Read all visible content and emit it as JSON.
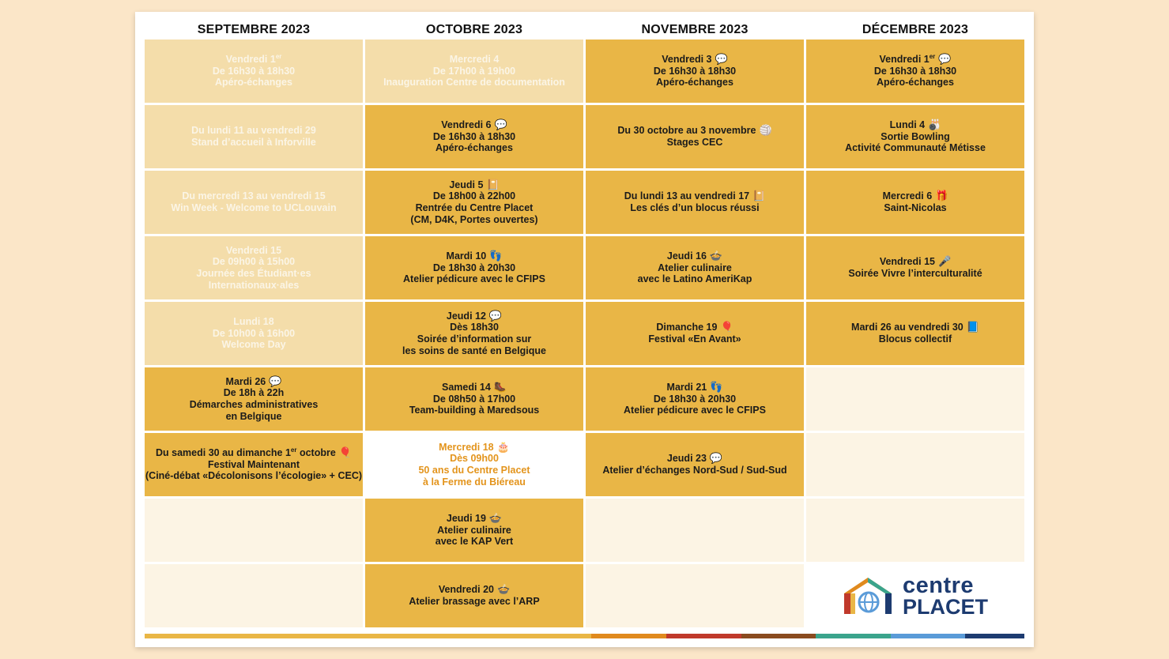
{
  "months": [
    "SEPTEMBRE 2023",
    "OCTOBRE 2023",
    "NOVEMBRE 2023",
    "DÉCEMBRE 2023"
  ],
  "colors": {
    "page_bg": "#fbe6c8",
    "active": "#e9b646",
    "past": "#f4ddaa",
    "empty": "#fcf4e4",
    "highlight_text": "#e3941c",
    "brand_navy": "#1d3b70"
  },
  "columns": [
    {
      "cells": [
        {
          "state": "past",
          "lines": [
            {
              "t": "Vendredi 1",
              "sup": "er"
            },
            {
              "t": "De 16h30 à 18h30"
            },
            {
              "t": "Apéro-échanges"
            }
          ]
        },
        {
          "state": "past",
          "lines": [
            {
              "t": "Du lundi 11 au vendredi 29"
            },
            {
              "t": "Stand d’accueil à Inforville"
            }
          ]
        },
        {
          "state": "past",
          "lines": [
            {
              "t": "Du mercredi 13 au vendredi 15"
            },
            {
              "t": "Win Week - Welcome to UCLouvain"
            }
          ]
        },
        {
          "state": "past",
          "lines": [
            {
              "t": "Vendredi 15"
            },
            {
              "t": "De 09h00 à 15h00"
            },
            {
              "t": "Journée des Étudiant·es"
            },
            {
              "t": "Internationaux·ales"
            }
          ]
        },
        {
          "state": "past",
          "lines": [
            {
              "t": "Lundi 18"
            },
            {
              "t": "De 10h00 à 16h00"
            },
            {
              "t": "Welcome Day"
            }
          ]
        },
        {
          "state": "active",
          "lines": [
            {
              "t": "Mardi 26",
              "icon": "speech-bubble-icon"
            },
            {
              "t": "De 18h à 22h"
            },
            {
              "t": "Démarches administratives"
            },
            {
              "t": "en Belgique"
            }
          ]
        },
        {
          "state": "active",
          "lines": [
            {
              "t": "Du samedi 30 au dimanche 1",
              "sup": "er",
              "t2": " octobre",
              "icon": "balloon-icon"
            },
            {
              "t": "Festival Maintenant"
            },
            {
              "t": "(Ciné-débat «Décolonisons l’écologie» + CEC)"
            }
          ]
        },
        {
          "state": "empty",
          "lines": []
        },
        {
          "state": "empty",
          "lines": []
        }
      ]
    },
    {
      "cells": [
        {
          "state": "past",
          "lines": [
            {
              "t": "Mercredi 4"
            },
            {
              "t": "De 17h00 à 19h00"
            },
            {
              "t": "Inauguration Centre de documentation"
            }
          ]
        },
        {
          "state": "active",
          "lines": [
            {
              "t": "Vendredi 6",
              "icon": "speech-bubble-icon"
            },
            {
              "t": "De 16h30 à 18h30"
            },
            {
              "t": "Apéro-échanges"
            }
          ]
        },
        {
          "state": "active",
          "lines": [
            {
              "t": "Jeudi 5",
              "icon": "notebook-icon"
            },
            {
              "t": "De 18h00 à 22h00"
            },
            {
              "t": "Rentrée du Centre Placet"
            },
            {
              "t": "(CM, D4K, Portes ouvertes)"
            }
          ]
        },
        {
          "state": "active",
          "lines": [
            {
              "t": "Mardi 10",
              "icon": "footprints-icon"
            },
            {
              "t": "De 18h30 à 20h30"
            },
            {
              "t": "Atelier pédicure avec le CFIPS"
            }
          ]
        },
        {
          "state": "active",
          "lines": [
            {
              "t": "Jeudi 12",
              "icon": "speech-bubble-icon"
            },
            {
              "t": "Dès 18h30"
            },
            {
              "t": "Soirée d’information sur"
            },
            {
              "t": "les soins de santé en Belgique"
            }
          ]
        },
        {
          "state": "active",
          "lines": [
            {
              "t": "Samedi 14",
              "icon": "hiking-boot-icon"
            },
            {
              "t": "De 08h50 à 17h00"
            },
            {
              "t": "Team-building à Maredsous"
            }
          ]
        },
        {
          "state": "highlight",
          "lines": [
            {
              "t": "Mercredi 18",
              "icon": "birthday-cake-icon"
            },
            {
              "t": "Dès 09h00"
            },
            {
              "t": "50 ans du Centre Placet"
            },
            {
              "t": "à la Ferme du Biéreau"
            }
          ]
        },
        {
          "state": "active",
          "lines": [
            {
              "t": "Jeudi 19",
              "icon": "bowl-icon"
            },
            {
              "t": "Atelier culinaire"
            },
            {
              "t": "avec le KAP Vert"
            }
          ]
        },
        {
          "state": "active",
          "lines": [
            {
              "t": "Vendredi 20",
              "icon": "bowl-icon"
            },
            {
              "t": "Atelier brassage avec l’ARP"
            }
          ]
        }
      ]
    },
    {
      "cells": [
        {
          "state": "active",
          "lines": [
            {
              "t": "Vendredi 3",
              "icon": "speech-bubble-icon"
            },
            {
              "t": "De 16h30 à 18h30"
            },
            {
              "t": "Apéro-échanges"
            }
          ]
        },
        {
          "state": "active",
          "lines": [
            {
              "t": "Du 30 octobre au 3 novembre",
              "icon": "volleyball-icon"
            },
            {
              "t": "Stages CEC"
            }
          ]
        },
        {
          "state": "active",
          "lines": [
            {
              "t": "Du lundi 13 au vendredi 17",
              "icon": "notebook-icon"
            },
            {
              "t": "Les clés d’un blocus réussi"
            }
          ]
        },
        {
          "state": "active",
          "lines": [
            {
              "t": "Jeudi 16",
              "icon": "bowl-icon"
            },
            {
              "t": "Atelier culinaire"
            },
            {
              "t": "avec le Latino AmeriKap"
            }
          ]
        },
        {
          "state": "active",
          "lines": [
            {
              "t": "Dimanche 19",
              "icon": "balloon-icon"
            },
            {
              "t": "Festival «En Avant»"
            }
          ]
        },
        {
          "state": "active",
          "lines": [
            {
              "t": "Mardi 21",
              "icon": "footprints-icon"
            },
            {
              "t": "De 18h30 à 20h30"
            },
            {
              "t": "Atelier pédicure avec le CFIPS"
            }
          ]
        },
        {
          "state": "active",
          "lines": [
            {
              "t": "Jeudi 23",
              "icon": "speech-bubble-icon"
            },
            {
              "t": "Atelier d’échanges Nord-Sud / Sud-Sud"
            }
          ]
        },
        {
          "state": "empty",
          "lines": []
        },
        {
          "state": "empty",
          "lines": []
        }
      ]
    },
    {
      "cells": [
        {
          "state": "active",
          "lines": [
            {
              "t": "Vendredi 1",
              "sup": "er",
              "icon": "speech-bubble-icon"
            },
            {
              "t": "De 16h30 à 18h30"
            },
            {
              "t": "Apéro-échanges"
            }
          ]
        },
        {
          "state": "active",
          "lines": [
            {
              "t": "Lundi 4",
              "icon": "bowling-icon"
            },
            {
              "t": "Sortie Bowling"
            },
            {
              "t": "Activité Communauté Métisse"
            }
          ]
        },
        {
          "state": "active",
          "lines": [
            {
              "t": "Mercredi 6",
              "icon": "gift-icon"
            },
            {
              "t": "Saint-Nicolas"
            }
          ]
        },
        {
          "state": "active",
          "lines": [
            {
              "t": "Vendredi 15",
              "icon": "microphone-icon"
            },
            {
              "t": "Soirée Vivre l’interculturalité"
            }
          ]
        },
        {
          "state": "active",
          "lines": [
            {
              "t": "Mardi 26 au vendredi 30",
              "icon": "book-icon"
            },
            {
              "t": "Blocus collectif"
            }
          ]
        },
        {
          "state": "empty",
          "lines": []
        },
        {
          "state": "empty",
          "lines": []
        },
        {
          "state": "empty",
          "lines": []
        },
        {
          "state": "logo",
          "lines": []
        }
      ]
    }
  ],
  "logo": {
    "word1": "centre",
    "word2": "PLACET"
  },
  "bottom_bars": [
    {
      "color": "#e9b646",
      "frac": 0.508
    },
    {
      "color": "#e08a1e",
      "frac": 0.085
    },
    {
      "color": "#c0392b",
      "frac": 0.085
    },
    {
      "color": "#8a4b1f",
      "frac": 0.085
    },
    {
      "color": "#3aa48c",
      "frac": 0.085
    },
    {
      "color": "#5a9bd8",
      "frac": 0.085
    },
    {
      "color": "#1d3b70",
      "frac": 0.067
    }
  ]
}
